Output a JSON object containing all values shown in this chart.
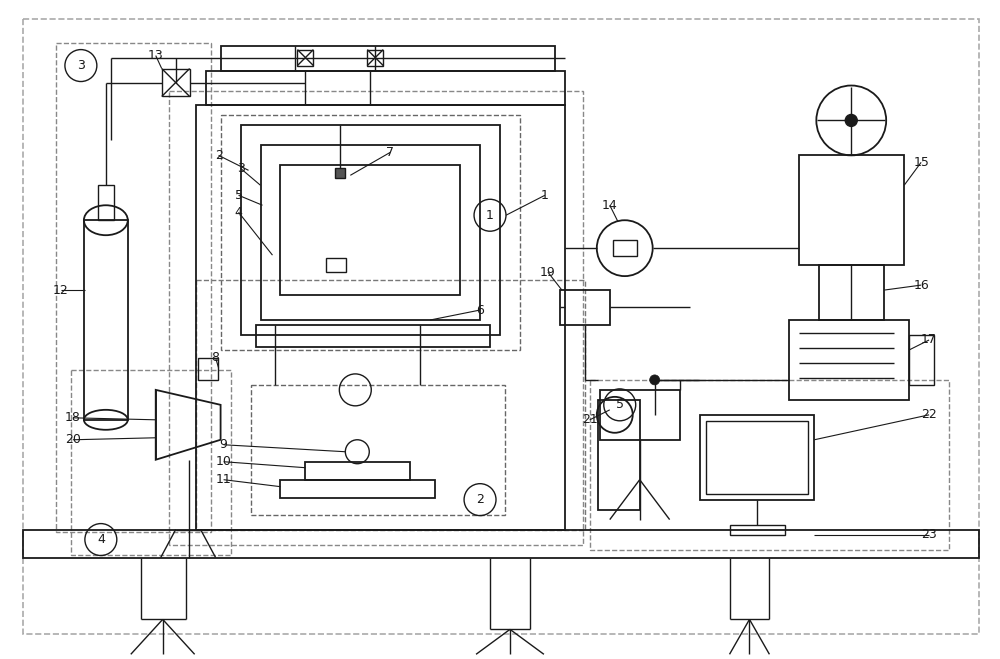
{
  "bg_color": "#ffffff",
  "lc": "#1a1a1a",
  "dc": "#999999",
  "fig_w": 10.0,
  "fig_h": 6.59,
  "dpi": 100
}
